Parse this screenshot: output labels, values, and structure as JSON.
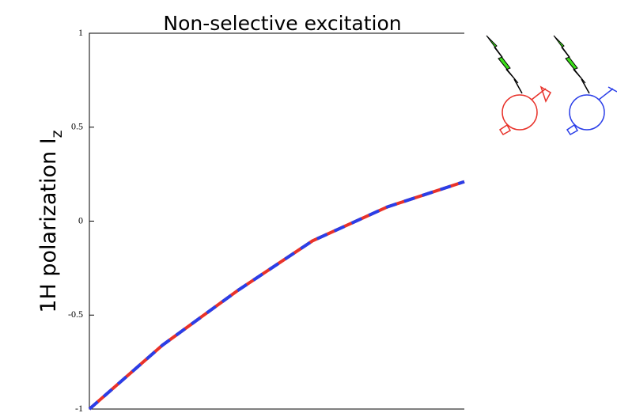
{
  "chart_data": {
    "type": "line",
    "title": "Non-selective excitation",
    "y_label": {
      "text": "1H polarization I",
      "subscript": "z"
    },
    "x": [
      0,
      0.195,
      0.395,
      0.595,
      0.795,
      1
    ],
    "xlim": [
      0,
      1
    ],
    "ylim": [
      -1,
      1
    ],
    "yticks": [
      -1,
      -0.5,
      0,
      0.5,
      1
    ],
    "series": [
      {
        "color": "#e8322a",
        "values": [
          -1,
          -0.66,
          -0.37,
          -0.105,
          0.076,
          0.21
        ]
      },
      {
        "color": "#2a3ee8",
        "values": [
          -1,
          -0.66,
          -0.37,
          -0.105,
          0.076,
          0.21
        ]
      }
    ]
  }
}
